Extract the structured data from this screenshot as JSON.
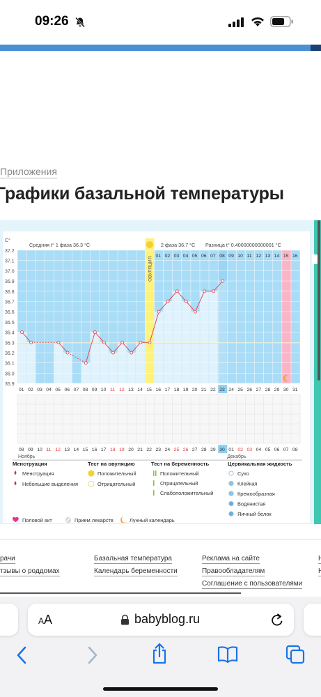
{
  "status_bar": {
    "time": "09:26"
  },
  "breadcrumb": "Приложения",
  "page_title": "Графики базальной температуры",
  "chart_data": {
    "type": "line",
    "y_unit": "С°",
    "ylim": [
      35.9,
      37.2
    ],
    "y_ticks": [
      "37.2",
      "37.1",
      "37.0",
      "36.9",
      "36.8",
      "36.7",
      "36.6",
      "36.5",
      "36.4",
      "36.3",
      "36.2",
      "36.1",
      "36.0",
      "35.9"
    ],
    "phase1_avg": "Средняя t° 1 фаза 36.3 °C",
    "phase2_avg": "2 фаза 36.7 °C",
    "diff": "Разница t° 0.40000000000001 °C",
    "ovulation_label": "ОВУЛЯЦИЯ",
    "cycle_days": [
      "01",
      "02",
      "03",
      "04",
      "05",
      "06",
      "07",
      "08",
      "09",
      "10",
      "11",
      "12",
      "13",
      "14",
      "15",
      "16",
      "17",
      "18",
      "19",
      "20",
      "21",
      "22",
      "23",
      "24",
      "25",
      "26",
      "27",
      "28",
      "29",
      "30",
      "31"
    ],
    "red_cycle_days": [
      "11",
      "12"
    ],
    "phase2_days": [
      "01",
      "02",
      "03",
      "04",
      "05",
      "06",
      "07",
      "08",
      "09",
      "10",
      "11",
      "12",
      "13",
      "14",
      "15",
      "16"
    ],
    "temperatures": [
      36.4,
      36.3,
      null,
      null,
      36.3,
      36.2,
      null,
      36.1,
      36.4,
      36.3,
      36.2,
      36.3,
      36.2,
      36.3,
      36.3,
      36.6,
      36.7,
      36.8,
      36.7,
      36.6,
      36.8,
      36.8,
      36.9
    ],
    "calendar_dates": [
      "08",
      "09",
      "10",
      "11",
      "12",
      "13",
      "14",
      "15",
      "16",
      "17",
      "18",
      "19",
      "20",
      "21",
      "22",
      "23",
      "24",
      "25",
      "26",
      "27",
      "28",
      "29",
      "30",
      "01",
      "02",
      "03",
      "04",
      "05",
      "06",
      "07",
      "08"
    ],
    "red_calendar_dates": [
      "11",
      "12",
      "18",
      "19",
      "25",
      "26",
      "02",
      "03"
    ],
    "month_labels": [
      "Ноябрь",
      "Декабрь"
    ],
    "selected_day": "30"
  },
  "legend": {
    "menstruation": {
      "title": "Менструация",
      "items": [
        "Менструация",
        "Небольшие выделения"
      ]
    },
    "ovulation_test": {
      "title": "Тест на овуляцию",
      "items": [
        "Положительный",
        "Отрицательный"
      ]
    },
    "pregnancy_test": {
      "title": "Тест на беременность",
      "items": [
        "Положительный",
        "Отрицательный",
        "Слабоположительный"
      ]
    },
    "cervical": {
      "title": "Цервикальная жидкость",
      "items": [
        "Сухо",
        "Клейкая",
        "Кремообразная",
        "Водянистая",
        "Яичный белок"
      ]
    },
    "bottom": [
      "Половой акт",
      "Прием лекарств",
      "Лунный календарь"
    ]
  },
  "footer": {
    "col1": [
      "рачи",
      "тзывы о роддомах"
    ],
    "col2": [
      "Базальная температура",
      "Календарь беременности"
    ],
    "col3": [
      "Реклама на сайте",
      "Правообладателям",
      "Соглашение с пользователями"
    ]
  },
  "browser": {
    "aa_label": "AA",
    "url": "babyblog.ru"
  },
  "colors": {
    "accent": "#4a90d2",
    "chart_blue": "#a9dcf6",
    "teal": "#3fc7b1",
    "ovulation_yellow": "#fff27a",
    "period_pink": "#f9b4c8",
    "line_red": "#e04a55"
  }
}
